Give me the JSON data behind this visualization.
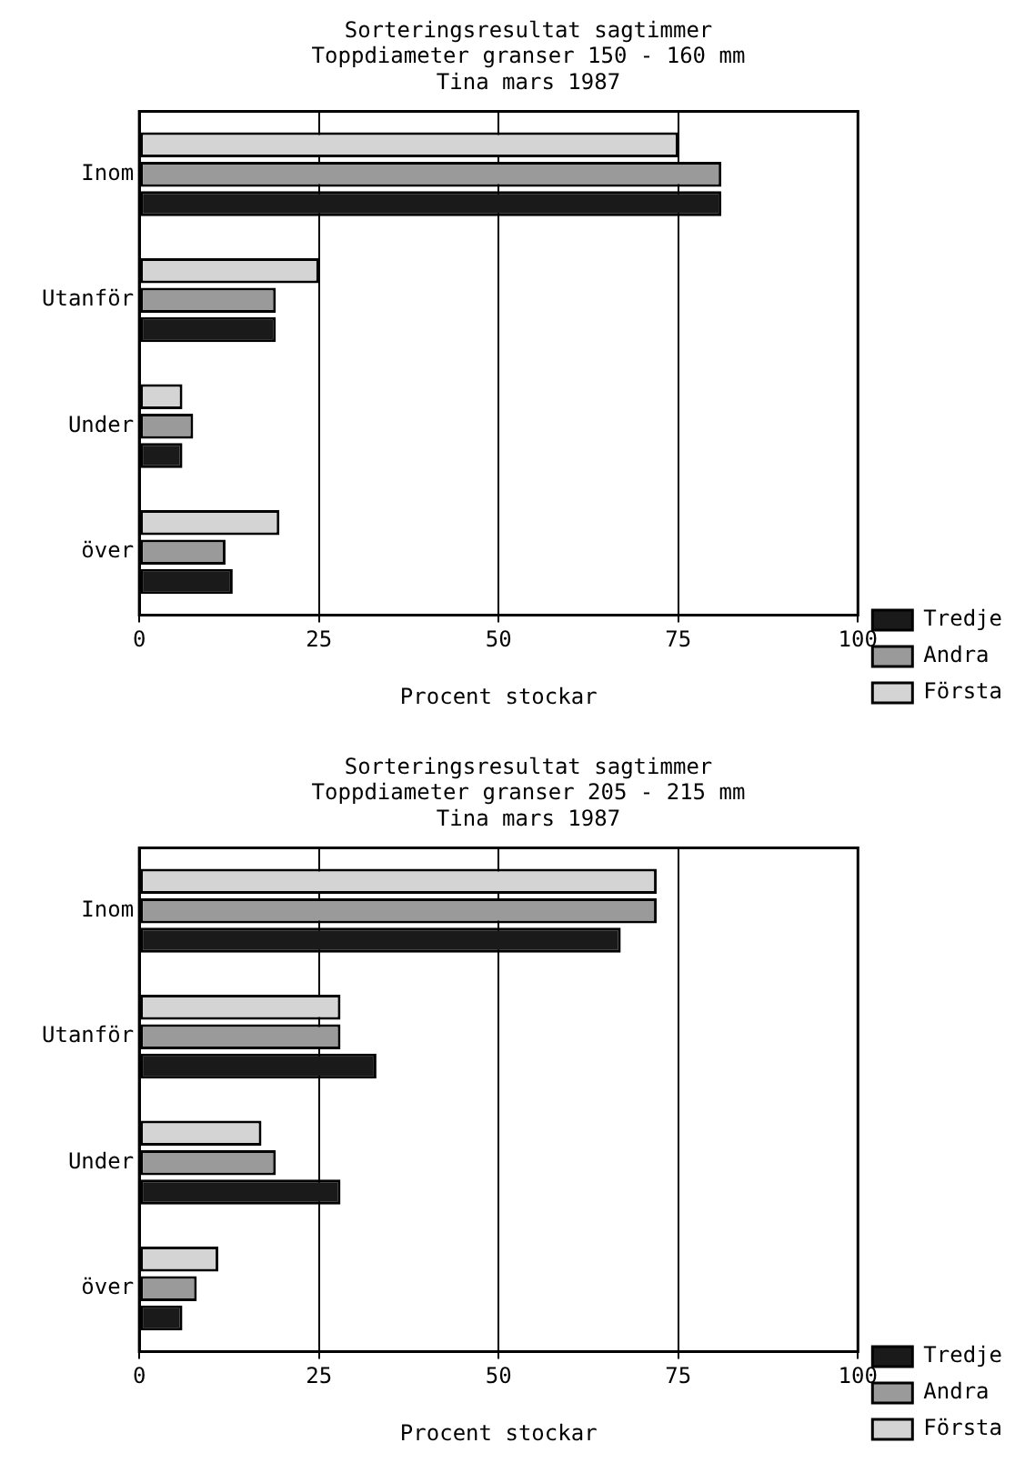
{
  "chart_data": [
    {
      "type": "bar",
      "orientation": "horizontal",
      "title": "Sorteringsresultat sagtimmer\nToppdiameter granser 150 - 160 mm\nTina mars 1987",
      "xlabel": "Procent stockar",
      "categories": [
        "Inom",
        "Utanför",
        "Under",
        "över"
      ],
      "series": [
        {
          "name": "Första",
          "color": "#d4d4d4",
          "values": [
            75,
            25,
            6,
            19.5
          ]
        },
        {
          "name": "Andra",
          "color": "#9a9a9a",
          "values": [
            81,
            19,
            7.5,
            12
          ]
        },
        {
          "name": "Tredje",
          "color": "#1a1a1a",
          "values": [
            81,
            19,
            6,
            13
          ]
        }
      ],
      "xlim": [
        0,
        100
      ],
      "xticks": [
        0,
        25,
        50,
        75,
        100
      ],
      "grid": "x",
      "legend": "bottom right"
    },
    {
      "type": "bar",
      "orientation": "horizontal",
      "title": "Sorteringsresultat sagtimmer\nToppdiameter granser 205 - 215 mm\nTina mars 1987",
      "xlabel": "Procent stockar",
      "categories": [
        "Inom",
        "Utanför",
        "Under",
        "över"
      ],
      "series": [
        {
          "name": "Första",
          "color": "#d4d4d4",
          "values": [
            72,
            28,
            17,
            11
          ]
        },
        {
          "name": "Andra",
          "color": "#9a9a9a",
          "values": [
            72,
            28,
            19,
            8
          ]
        },
        {
          "name": "Tredje",
          "color": "#1a1a1a",
          "values": [
            67,
            33,
            28,
            6
          ]
        }
      ],
      "xlim": [
        0,
        100
      ],
      "xticks": [
        0,
        25,
        50,
        75,
        100
      ],
      "grid": "x",
      "legend": "bottom right"
    }
  ]
}
